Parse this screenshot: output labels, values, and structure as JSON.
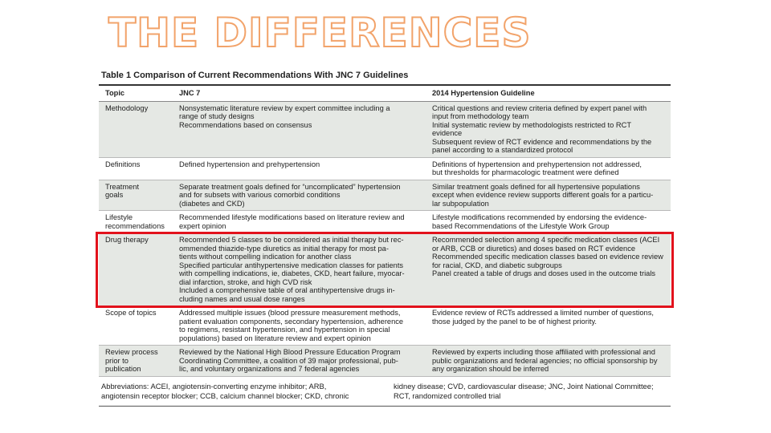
{
  "slide": {
    "title": "THE DIFFERENCES"
  },
  "table": {
    "caption": "Table 1 Comparison of Current Recommendations With JNC 7 Guidelines",
    "headers": [
      "Topic",
      "JNC 7",
      "2014 Hypertension Guideline"
    ],
    "rows": [
      {
        "topic": "Methodology",
        "jnc7": "Nonsystematic literature review by expert committee including a\nrange of study designs\nRecommendations based on consensus",
        "g2014": "Critical questions and review criteria defined by expert panel with\ninput from methodology team\nInitial systematic review by methodologists restricted to RCT\nevidence\nSubsequent review of RCT evidence and recommendations by the\npanel according to a standardized protocol"
      },
      {
        "topic": "Definitions",
        "jnc7": "Defined hypertension and prehypertension",
        "g2014": "Definitions of hypertension and prehypertension not addressed,\nbut thresholds for pharmacologic treatment were defined"
      },
      {
        "topic": "Treatment\ngoals",
        "jnc7": "Separate treatment goals defined for “uncomplicated” hypertension\nand for subsets with various comorbid conditions\n(diabetes and CKD)",
        "g2014": "Similar treatment goals defined for all hypertensive populations\nexcept when evidence review supports different goals for a particu-\nlar subpopulation"
      },
      {
        "topic": "Lifestyle\nrecommendations",
        "jnc7": "Recommended lifestyle modifications based on literature review and\nexpert opinion",
        "g2014": "Lifestyle modifications recommended by endorsing the evidence-\nbased Recommendations of the Lifestyle Work Group"
      },
      {
        "topic": "Drug therapy",
        "jnc7": "Recommended 5 classes to be considered as initial therapy but rec-\nommended thiazide-type diuretics as initial therapy for most pa-\ntients without compelling indication for another class\nSpecified particular antihypertensive medication classes for patients\nwith compelling indications, ie, diabetes, CKD, heart failure, myocar-\ndial infarction, stroke, and high CVD risk\nIncluded a comprehensive table of oral antihypertensive drugs in-\ncluding names and usual dose ranges",
        "g2014": "Recommended selection among 4 specific medication classes (ACEI\nor ARB, CCB or diuretics) and doses based on RCT evidence\nRecommended specific medication classes based on evidence review\nfor racial, CKD, and diabetic subgroups\nPanel created a table of drugs and doses used in the outcome trials"
      },
      {
        "topic": "Scope of topics",
        "jnc7": "Addressed multiple issues (blood pressure measurement methods,\npatient evaluation components, secondary hypertension, adherence\nto regimens, resistant hypertension, and hypertension in special\npopulations) based on literature review and expert opinion",
        "g2014": "Evidence review of RCTs addressed a limited number of questions,\nthose judged by the panel to be of highest priority."
      },
      {
        "topic": "Review process\nprior to\npublication",
        "jnc7": "Reviewed by the National High Blood Pressure Education Program\nCoordinating Committee, a coalition of 39 major professional, pub-\nlic, and voluntary organizations and 7 federal agencies",
        "g2014": "Reviewed by experts including those affiliated with professional and\npublic organizations and federal agencies; no official sponsorship by\nany organization should be inferred"
      }
    ],
    "abbreviations_left": "Abbreviations: ACEI, angiotensin-converting enzyme inhibitor; ARB,\nangiotensin receptor blocker; CCB, calcium channel blocker; CKD, chronic",
    "abbreviations_right": "kidney disease; CVD, cardiovascular disease; JNC, Joint National Committee;\nRCT, randomized controlled trial"
  },
  "colors": {
    "highlight": "#e2121c",
    "title_outline": "#f2a36a",
    "row_shade": "#e5e8e4"
  }
}
